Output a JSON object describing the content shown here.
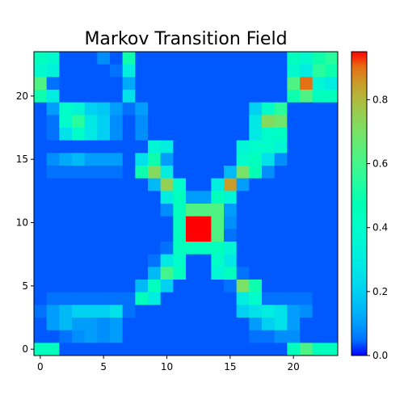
{
  "chart_data": {
    "type": "heatmap",
    "title": "Markov Transition Field",
    "xlabel": "",
    "ylabel": "",
    "colormap": "rainbow",
    "vmin": 0.0,
    "vmax": 0.95,
    "origin": "lower",
    "x_range": [
      -0.5,
      23.5
    ],
    "y_range": [
      -0.5,
      23.5
    ],
    "x_ticks": [
      0,
      5,
      10,
      15,
      20
    ],
    "y_ticks": [
      0,
      5,
      10,
      15,
      20
    ],
    "colorbar_ticks": [
      0.0,
      0.2,
      0.4,
      0.6,
      0.8
    ],
    "colorbar_tick_labels": [
      "0.0",
      "0.2",
      "0.4",
      "0.6",
      "0.8"
    ],
    "rows_top_to_bottom": [
      [
        0.45,
        0.38,
        0.03,
        0.03,
        0.03,
        0.08,
        0.03,
        0.5,
        0.03,
        0.03,
        0.03,
        0.03,
        0.03,
        0.03,
        0.03,
        0.03,
        0.03,
        0.03,
        0.03,
        0.03,
        0.45,
        0.38,
        0.5,
        0.55
      ],
      [
        0.38,
        0.33,
        0.03,
        0.03,
        0.03,
        0.03,
        0.05,
        0.3,
        0.03,
        0.03,
        0.03,
        0.03,
        0.03,
        0.03,
        0.03,
        0.03,
        0.03,
        0.03,
        0.03,
        0.03,
        0.38,
        0.3,
        0.55,
        0.5
      ],
      [
        0.62,
        0.05,
        0.03,
        0.03,
        0.03,
        0.03,
        0.03,
        0.12,
        0.03,
        0.03,
        0.03,
        0.03,
        0.03,
        0.03,
        0.03,
        0.03,
        0.03,
        0.03,
        0.03,
        0.03,
        0.62,
        0.9,
        0.35,
        0.3
      ],
      [
        0.5,
        0.3,
        0.03,
        0.03,
        0.03,
        0.03,
        0.03,
        0.25,
        0.03,
        0.03,
        0.03,
        0.03,
        0.03,
        0.03,
        0.03,
        0.03,
        0.03,
        0.03,
        0.03,
        0.03,
        0.5,
        0.62,
        0.45,
        0.45
      ],
      [
        0.03,
        0.1,
        0.4,
        0.35,
        0.2,
        0.18,
        0.1,
        0.05,
        0.1,
        0.03,
        0.03,
        0.03,
        0.03,
        0.03,
        0.03,
        0.03,
        0.03,
        0.2,
        0.4,
        0.55,
        0.03,
        0.03,
        0.03,
        0.03
      ],
      [
        0.03,
        0.05,
        0.4,
        0.55,
        0.28,
        0.2,
        0.08,
        0.03,
        0.08,
        0.03,
        0.03,
        0.03,
        0.03,
        0.03,
        0.03,
        0.03,
        0.03,
        0.28,
        0.72,
        0.68,
        0.03,
        0.03,
        0.03,
        0.03
      ],
      [
        0.03,
        0.05,
        0.25,
        0.4,
        0.28,
        0.2,
        0.08,
        0.03,
        0.08,
        0.03,
        0.03,
        0.03,
        0.03,
        0.03,
        0.03,
        0.03,
        0.03,
        0.28,
        0.4,
        0.42,
        0.03,
        0.03,
        0.03,
        0.03
      ],
      [
        0.03,
        0.03,
        0.03,
        0.03,
        0.03,
        0.03,
        0.03,
        0.03,
        0.03,
        0.35,
        0.3,
        0.03,
        0.03,
        0.03,
        0.03,
        0.03,
        0.35,
        0.4,
        0.4,
        0.35,
        0.03,
        0.03,
        0.03,
        0.03
      ],
      [
        0.03,
        0.08,
        0.12,
        0.15,
        0.1,
        0.1,
        0.1,
        0.03,
        0.25,
        0.5,
        0.1,
        0.03,
        0.03,
        0.03,
        0.03,
        0.03,
        0.4,
        0.45,
        0.25,
        0.08,
        0.03,
        0.03,
        0.03,
        0.03
      ],
      [
        0.03,
        0.05,
        0.05,
        0.05,
        0.05,
        0.05,
        0.05,
        0.03,
        0.5,
        0.72,
        0.3,
        0.03,
        0.03,
        0.03,
        0.03,
        0.15,
        0.7,
        0.48,
        0.08,
        0.03,
        0.03,
        0.03,
        0.03,
        0.03
      ],
      [
        0.03,
        0.03,
        0.03,
        0.03,
        0.03,
        0.03,
        0.03,
        0.03,
        0.03,
        0.15,
        0.75,
        0.4,
        0.03,
        0.03,
        0.3,
        0.85,
        0.1,
        0.03,
        0.03,
        0.03,
        0.03,
        0.03,
        0.03,
        0.03
      ],
      [
        0.03,
        0.03,
        0.03,
        0.03,
        0.03,
        0.03,
        0.03,
        0.03,
        0.03,
        0.03,
        0.3,
        0.45,
        0.1,
        0.1,
        0.45,
        0.35,
        0.03,
        0.03,
        0.03,
        0.03,
        0.03,
        0.03,
        0.03,
        0.03
      ],
      [
        0.03,
        0.03,
        0.03,
        0.03,
        0.03,
        0.03,
        0.03,
        0.03,
        0.03,
        0.03,
        0.08,
        0.45,
        0.62,
        0.62,
        0.62,
        0.1,
        0.03,
        0.03,
        0.03,
        0.03,
        0.03,
        0.03,
        0.03,
        0.03
      ],
      [
        0.03,
        0.03,
        0.03,
        0.03,
        0.03,
        0.03,
        0.03,
        0.03,
        0.03,
        0.03,
        0.03,
        0.45,
        0.95,
        0.95,
        0.62,
        0.08,
        0.03,
        0.03,
        0.03,
        0.03,
        0.03,
        0.03,
        0.03,
        0.03
      ],
      [
        0.03,
        0.03,
        0.03,
        0.03,
        0.03,
        0.03,
        0.03,
        0.03,
        0.03,
        0.03,
        0.03,
        0.45,
        0.95,
        0.95,
        0.62,
        0.05,
        0.03,
        0.03,
        0.03,
        0.03,
        0.03,
        0.03,
        0.03,
        0.03
      ],
      [
        0.03,
        0.03,
        0.03,
        0.03,
        0.03,
        0.03,
        0.03,
        0.03,
        0.03,
        0.03,
        0.05,
        0.45,
        0.45,
        0.45,
        0.45,
        0.35,
        0.03,
        0.03,
        0.03,
        0.03,
        0.03,
        0.03,
        0.03,
        0.03
      ],
      [
        0.03,
        0.03,
        0.03,
        0.03,
        0.03,
        0.03,
        0.03,
        0.03,
        0.03,
        0.05,
        0.28,
        0.4,
        0.03,
        0.03,
        0.4,
        0.28,
        0.03,
        0.03,
        0.03,
        0.03,
        0.03,
        0.03,
        0.03,
        0.03
      ],
      [
        0.03,
        0.03,
        0.03,
        0.03,
        0.03,
        0.03,
        0.03,
        0.03,
        0.03,
        0.15,
        0.6,
        0.45,
        0.03,
        0.03,
        0.35,
        0.45,
        0.05,
        0.03,
        0.03,
        0.03,
        0.03,
        0.03,
        0.03,
        0.03
      ],
      [
        0.03,
        0.03,
        0.03,
        0.03,
        0.03,
        0.03,
        0.03,
        0.03,
        0.15,
        0.45,
        0.2,
        0.03,
        0.03,
        0.03,
        0.03,
        0.05,
        0.7,
        0.5,
        0.03,
        0.03,
        0.03,
        0.03,
        0.03,
        0.03
      ],
      [
        0.03,
        0.05,
        0.05,
        0.05,
        0.05,
        0.05,
        0.05,
        0.05,
        0.45,
        0.3,
        0.03,
        0.03,
        0.03,
        0.03,
        0.03,
        0.03,
        0.3,
        0.4,
        0.05,
        0.05,
        0.05,
        0.05,
        0.03,
        0.03
      ],
      [
        0.05,
        0.1,
        0.15,
        0.2,
        0.2,
        0.2,
        0.25,
        0.05,
        0.03,
        0.03,
        0.03,
        0.03,
        0.03,
        0.03,
        0.03,
        0.03,
        0.2,
        0.25,
        0.3,
        0.25,
        0.1,
        0.08,
        0.03,
        0.03
      ],
      [
        0.03,
        0.1,
        0.15,
        0.1,
        0.1,
        0.08,
        0.1,
        0.03,
        0.03,
        0.03,
        0.03,
        0.03,
        0.03,
        0.03,
        0.03,
        0.03,
        0.03,
        0.1,
        0.2,
        0.25,
        0.1,
        0.03,
        0.03,
        0.03
      ],
      [
        0.03,
        0.03,
        0.05,
        0.08,
        0.1,
        0.08,
        0.1,
        0.03,
        0.03,
        0.03,
        0.03,
        0.03,
        0.03,
        0.03,
        0.03,
        0.03,
        0.03,
        0.05,
        0.05,
        0.08,
        0.08,
        0.03,
        0.03,
        0.03
      ],
      [
        0.45,
        0.45,
        0.03,
        0.03,
        0.03,
        0.03,
        0.03,
        0.03,
        0.03,
        0.03,
        0.03,
        0.03,
        0.03,
        0.03,
        0.03,
        0.03,
        0.03,
        0.03,
        0.03,
        0.03,
        0.45,
        0.62,
        0.45,
        0.45
      ]
    ]
  }
}
